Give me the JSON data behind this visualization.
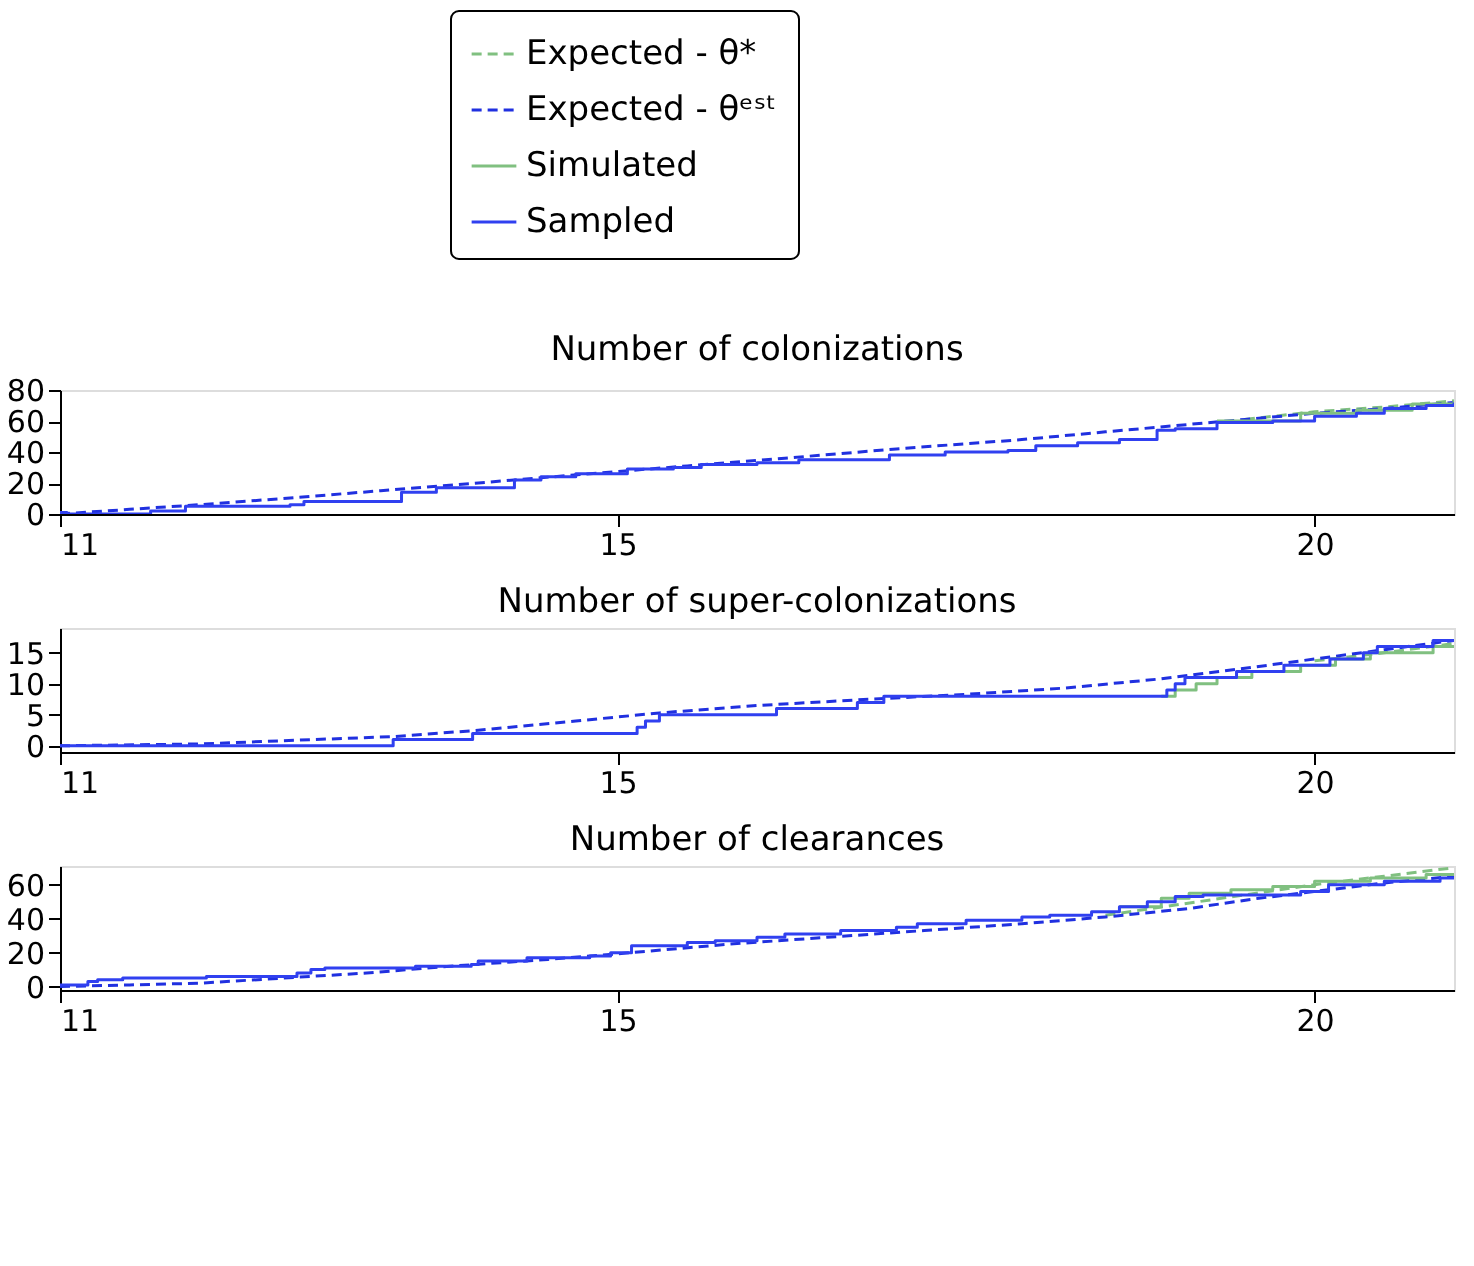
{
  "chart_data": [
    {
      "type": "step",
      "title": "Number of colonizations",
      "legend": "top",
      "grid": false,
      "xlim": [
        11,
        21
      ],
      "xticks": [
        11,
        15,
        20
      ],
      "ylim": [
        0,
        80
      ],
      "yticks": [
        0,
        20,
        40,
        60,
        80
      ],
      "series": [
        {
          "name": "Expected - θ*",
          "type": "line",
          "line_style": "dashed",
          "color": "#80c080",
          "x": [
            19.5,
            20.0,
            20.5,
            21
          ],
          "values": [
            61,
            66,
            69,
            73
          ]
        },
        {
          "name": "Expected - θᵉˢᵗ",
          "type": "line",
          "line_style": "dashed",
          "color": "#2030e0",
          "x": [
            11,
            11.5,
            12,
            12.6,
            13.3,
            14.0,
            14.8,
            15.5,
            16.2,
            17.0,
            17.9,
            18.5,
            19.0,
            19.5,
            20.0,
            20.5,
            21
          ],
          "values": [
            0,
            3,
            6,
            10,
            15,
            20,
            26,
            31,
            36,
            42,
            48,
            53,
            57,
            61,
            65,
            68,
            72
          ]
        },
        {
          "name": "Simulated",
          "line_style": "solid",
          "color": "#80c080",
          "x": [
            19.3,
            19.9,
            20.3,
            20.7,
            21
          ],
          "values": [
            60,
            65,
            67,
            71,
            73
          ]
        },
        {
          "name": "Sampled",
          "line_style": "solid",
          "color": "#3040f0",
          "x": [
            11,
            11.05,
            11.65,
            11.9,
            12.65,
            12.75,
            13.45,
            13.7,
            14.2,
            14.26,
            14.45,
            14.7,
            15.07,
            15.4,
            15.6,
            16.0,
            16.3,
            16.8,
            16.95,
            17.35,
            17.8,
            18.0,
            18.3,
            18.6,
            18.87,
            19.0,
            19.3,
            19.7,
            20.0,
            20.3,
            20.5,
            20.8,
            21
          ],
          "values": [
            1,
            0,
            2,
            5,
            6,
            8,
            14,
            17,
            17,
            22,
            24,
            26,
            29,
            30,
            32,
            33,
            35,
            35,
            38,
            40,
            41,
            44,
            46,
            48,
            54,
            55,
            59,
            60,
            63,
            65,
            68,
            70,
            72
          ]
        }
      ]
    },
    {
      "type": "step",
      "title": "Number of super-colonizations",
      "grid": false,
      "xlim": [
        11,
        21
      ],
      "xticks": [
        11,
        15,
        20
      ],
      "ylim": [
        -1,
        19
      ],
      "yticks": [
        0,
        5,
        10,
        15
      ],
      "series": [
        {
          "name": "Expected - θ*",
          "type": "line",
          "line_style": "dashed",
          "color": "#80c080",
          "x": [
            20,
            20.5,
            21
          ],
          "values": [
            13.7,
            15,
            16.5
          ]
        },
        {
          "name": "Expected - θᵉˢᵗ",
          "type": "line",
          "line_style": "dashed",
          "color": "#2030e0",
          "x": [
            11,
            12,
            13.4,
            14,
            14.7,
            15.3,
            16.0,
            16.8,
            17.5,
            18.2,
            18.9,
            19.5,
            20,
            20.5,
            21
          ],
          "values": [
            0,
            0.3,
            1.5,
            2.5,
            4,
            5.3,
            6.5,
            7.5,
            8.3,
            9.3,
            10.8,
            12.5,
            14,
            15.5,
            17
          ]
        },
        {
          "name": "Simulated",
          "line_style": "solid",
          "color": "#80c080",
          "x": [
            18.9,
            19.0,
            19.15,
            19.3,
            19.55,
            19.9,
            20.15,
            20.4,
            20.85,
            21
          ],
          "values": [
            8,
            9,
            10,
            11,
            12,
            13,
            14,
            15,
            16,
            16
          ]
        },
        {
          "name": "Sampled",
          "line_style": "solid",
          "color": "#3040f0",
          "x": [
            11,
            13.39,
            13.96,
            15.14,
            15.2,
            15.3,
            16.14,
            16.72,
            16.91,
            18.94,
            19.0,
            19.07,
            19.44,
            19.78,
            20.11,
            20.35,
            20.45,
            20.85,
            21
          ],
          "values": [
            0,
            1,
            2,
            3,
            4,
            5,
            6,
            7,
            8,
            9,
            10,
            11,
            12,
            13,
            14,
            15,
            16,
            17,
            17
          ]
        }
      ]
    },
    {
      "type": "step",
      "title": "Number of clearances",
      "grid": false,
      "xlim": [
        11,
        21
      ],
      "xticks": [
        11,
        15,
        20
      ],
      "ylim": [
        -2,
        71
      ],
      "yticks": [
        0,
        20,
        40,
        60
      ],
      "series": [
        {
          "name": "Expected - θ*",
          "type": "line",
          "line_style": "dashed",
          "color": "#80c080",
          "x": [
            18.5,
            19.0,
            19.5,
            20.0,
            20.5,
            21
          ],
          "values": [
            42,
            48,
            54,
            60,
            65,
            70
          ]
        },
        {
          "name": "Expected - θᵉˢᵗ",
          "type": "line",
          "line_style": "dashed",
          "color": "#2030e0",
          "x": [
            11,
            11.5,
            12,
            12.6,
            13.2,
            13.8,
            14.5,
            15.1,
            15.8,
            16.5,
            17.2,
            17.9,
            18.5,
            19.1,
            19.6,
            20.1,
            20.5,
            21
          ],
          "values": [
            0,
            1,
            2,
            5,
            8,
            12,
            16,
            20,
            25,
            29,
            33,
            37,
            41,
            46,
            52,
            57,
            61,
            65
          ]
        },
        {
          "name": "Simulated",
          "line_style": "solid",
          "color": "#80c080",
          "x": [
            18.6,
            18.9,
            19.1,
            19.4,
            19.7,
            20.0,
            20.4,
            20.8,
            21
          ],
          "values": [
            47,
            52,
            55,
            57,
            59,
            62,
            64,
            66,
            66
          ]
        },
        {
          "name": "Sampled",
          "line_style": "solid",
          "color": "#3040f0",
          "x": [
            11,
            11.2,
            11.27,
            11.45,
            12.05,
            12.7,
            12.8,
            12.9,
            13.55,
            13.95,
            14.0,
            14.35,
            14.8,
            14.95,
            15.1,
            15.5,
            15.7,
            16.0,
            16.2,
            16.6,
            17.0,
            17.15,
            17.5,
            17.9,
            18.1,
            18.4,
            18.6,
            18.8,
            19.0,
            19.2,
            19.9,
            20.1,
            20.5,
            20.9,
            21
          ],
          "values": [
            1,
            3,
            4,
            5,
            6,
            8,
            10,
            11,
            12,
            13,
            15,
            17,
            18,
            20,
            24,
            26,
            27,
            29,
            31,
            33,
            35,
            37,
            39,
            41,
            42,
            44,
            47,
            50,
            53,
            54,
            56,
            60,
            62,
            64,
            64
          ]
        }
      ]
    }
  ]
}
